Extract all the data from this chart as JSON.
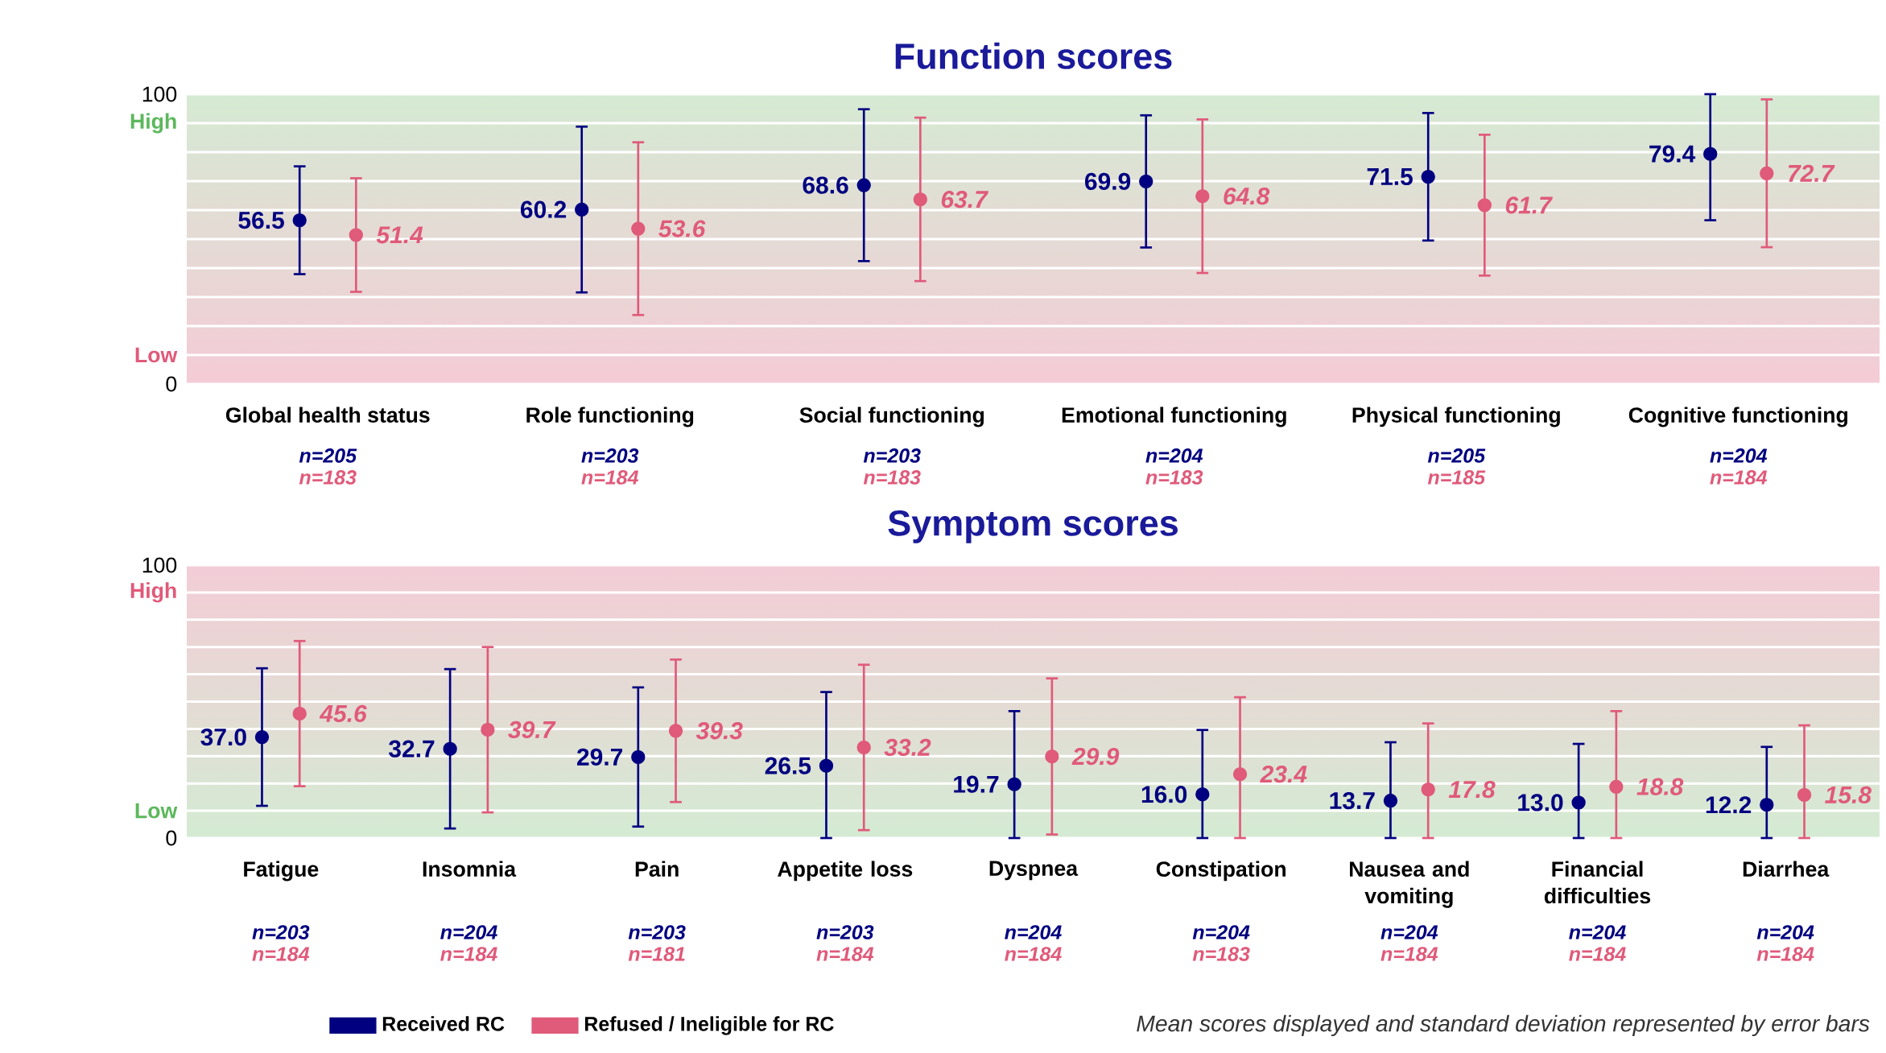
{
  "chart_data": [
    {
      "type": "scatter",
      "title": "Function scores",
      "categories": [
        "Global health status",
        "Role functioning",
        "Social functioning",
        "Emotional functioning",
        "Physical functioning",
        "Cognitive functioning"
      ],
      "series": [
        {
          "color": "#000080",
          "values": [
            56.5,
            60.2,
            68.6,
            69.9,
            71.5,
            79.4
          ],
          "errors": [
            18.6,
            28.6,
            26.2,
            22.8,
            22.0,
            [
              56.5,
              100
            ]
          ],
          "value_labels": [
            "56.5",
            "60.2",
            "68.6",
            "69.9",
            "71.5",
            "79.4"
          ]
        },
        {
          "color": "#e05a7a",
          "values": [
            51.4,
            53.6,
            63.7,
            64.8,
            61.7,
            72.7
          ],
          "errors": [
            19.6,
            29.8,
            28.2,
            26.5,
            24.3,
            25.5
          ],
          "value_labels": [
            "51.4",
            "53.6",
            "63.7",
            "64.8",
            "61.7",
            "72.7"
          ]
        }
      ],
      "ylim": [
        0,
        100
      ],
      "yticks": [
        0,
        {
          "value": 10,
          "label": "Low"
        },
        {
          "value": 20,
          "label": null
        },
        {
          "value": 30,
          "label": null
        },
        {
          "value": 40,
          "label": null
        },
        {
          "value": 50,
          "label": null
        },
        {
          "value": 60,
          "label": null
        },
        {
          "value": 70,
          "label": null
        },
        {
          "value": 80,
          "label": null
        },
        {
          "value": 90,
          "label": "High"
        },
        100
      ],
      "grid": "y",
      "marker": "circle",
      "annotations": [
        "n=205",
        "n=183",
        "n=203",
        "n=184",
        "n=203",
        "n=183",
        "n=204",
        "n=183",
        "n=205",
        "n=185",
        "n=204",
        "n=184"
      ]
    },
    {
      "type": "scatter",
      "title": "Symptom scores",
      "categories": [
        "Fatigue",
        "Insomnia",
        "Pain",
        "Appetite loss",
        "Dyspnea",
        "Constipation",
        "Nausea and vomiting",
        "Financial difficulties",
        "Diarrhea"
      ],
      "series": [
        {
          "name": "Received RC",
          "color": "#000080",
          "values": [
            37.0,
            32.7,
            29.7,
            26.5,
            19.7,
            16.0,
            13.7,
            13.0,
            12.2
          ],
          "errors": [
            25.2,
            29.2,
            25.5,
            [
              0,
              53.5
            ],
            [
              0,
              46.5
            ],
            [
              0,
              39.6
            ],
            [
              0,
              35.1
            ],
            [
              0,
              34.5
            ],
            [
              0,
              33.4
            ]
          ],
          "value_labels": [
            "37.0",
            "32.7",
            "29.7",
            "26.5",
            "19.7",
            "16.0",
            "13.7",
            "13.0",
            "12.2"
          ]
        },
        {
          "name": "Refused / Ineligible for RC",
          "color": "#e05a7a",
          "values": [
            45.6,
            39.7,
            39.3,
            33.2,
            29.9,
            23.4,
            17.8,
            18.8,
            15.8
          ],
          "errors": [
            26.6,
            30.3,
            26.1,
            30.3,
            28.6,
            [
              0,
              51.6
            ],
            [
              0,
              42.0
            ],
            [
              0,
              46.5
            ],
            [
              0,
              41.3
            ]
          ],
          "value_labels": [
            "45.6",
            "39.7",
            "39.3",
            "33.2",
            "29.9",
            "23.4",
            "17.8",
            "18.8",
            "15.8"
          ]
        }
      ],
      "ylim": [
        0,
        100
      ],
      "yticks": [
        0,
        {
          "value": 10,
          "label": "Low"
        },
        {
          "value": 20,
          "label": null
        },
        {
          "value": 30,
          "label": null
        },
        {
          "value": 40,
          "label": null
        },
        {
          "value": 50,
          "label": null
        },
        {
          "value": 60,
          "label": null
        },
        {
          "value": 70,
          "label": null
        },
        {
          "value": 80,
          "label": null
        },
        {
          "value": 90,
          "label": "High"
        },
        100
      ],
      "grid": "y",
      "marker": "circle",
      "legend": "bottom",
      "annotations": [
        "*Mean scores displayed and standard deviation represented by error bars*",
        "n=203",
        "n=184",
        "n=204",
        "n=184",
        "n=203",
        "n=181",
        "n=203",
        "n=184",
        "n=204",
        "n=184",
        "n=204",
        "n=183",
        "n=204",
        "n=184",
        "n=204",
        "n=184",
        "n=204",
        "n=184"
      ]
    }
  ]
}
